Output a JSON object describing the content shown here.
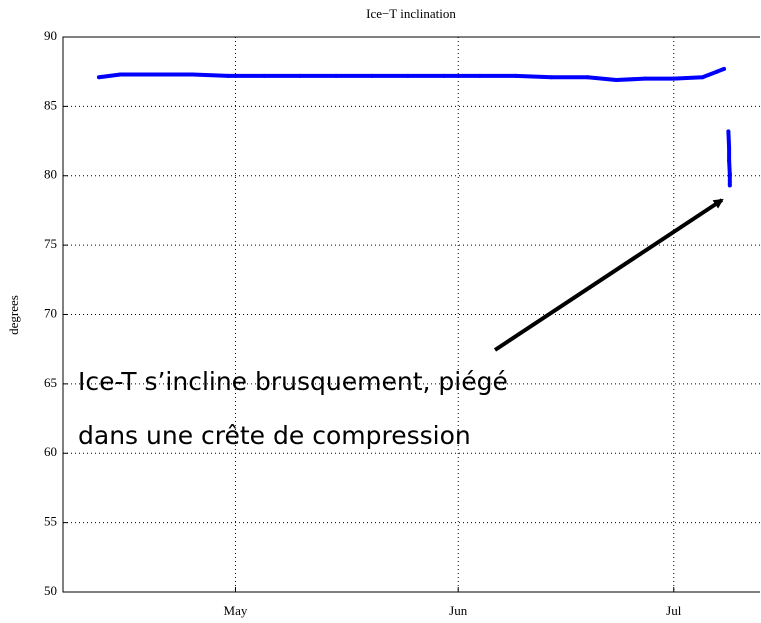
{
  "chart_data": {
    "type": "line",
    "title": "Ice−T inclination",
    "y_label": "degrees",
    "annotation": [
      "Ice-T s’incline brusquement, piégé",
      "dans une crête de compression"
    ],
    "x": [
      102,
      105,
      110,
      115,
      120,
      125,
      130,
      135,
      140,
      145,
      150,
      155,
      160,
      165,
      170,
      174,
      178,
      182,
      186,
      188,
      189,
      189.4,
      189.6,
      189.7,
      189.7,
      189.8,
      189.8
    ],
    "values": [
      87.1,
      87.3,
      87.3,
      87.3,
      87.2,
      87.2,
      87.2,
      87.2,
      87.2,
      87.2,
      87.2,
      87.2,
      87.2,
      87.1,
      87.1,
      86.9,
      87.0,
      87.0,
      87.1,
      87.5,
      87.7,
      null,
      83.2,
      82.0,
      81.1,
      80.1,
      79.3
    ],
    "color": "#0000ff",
    "xlim": [
      97,
      194
    ],
    "xticks": [
      {
        "value": 121,
        "label": "May"
      },
      {
        "value": 152,
        "label": "Jun"
      },
      {
        "value": 182,
        "label": "Jul"
      }
    ],
    "ylim": [
      50,
      90
    ],
    "yticks": [
      50,
      55,
      60,
      65,
      70,
      75,
      80,
      85,
      90
    ],
    "grid": true
  }
}
